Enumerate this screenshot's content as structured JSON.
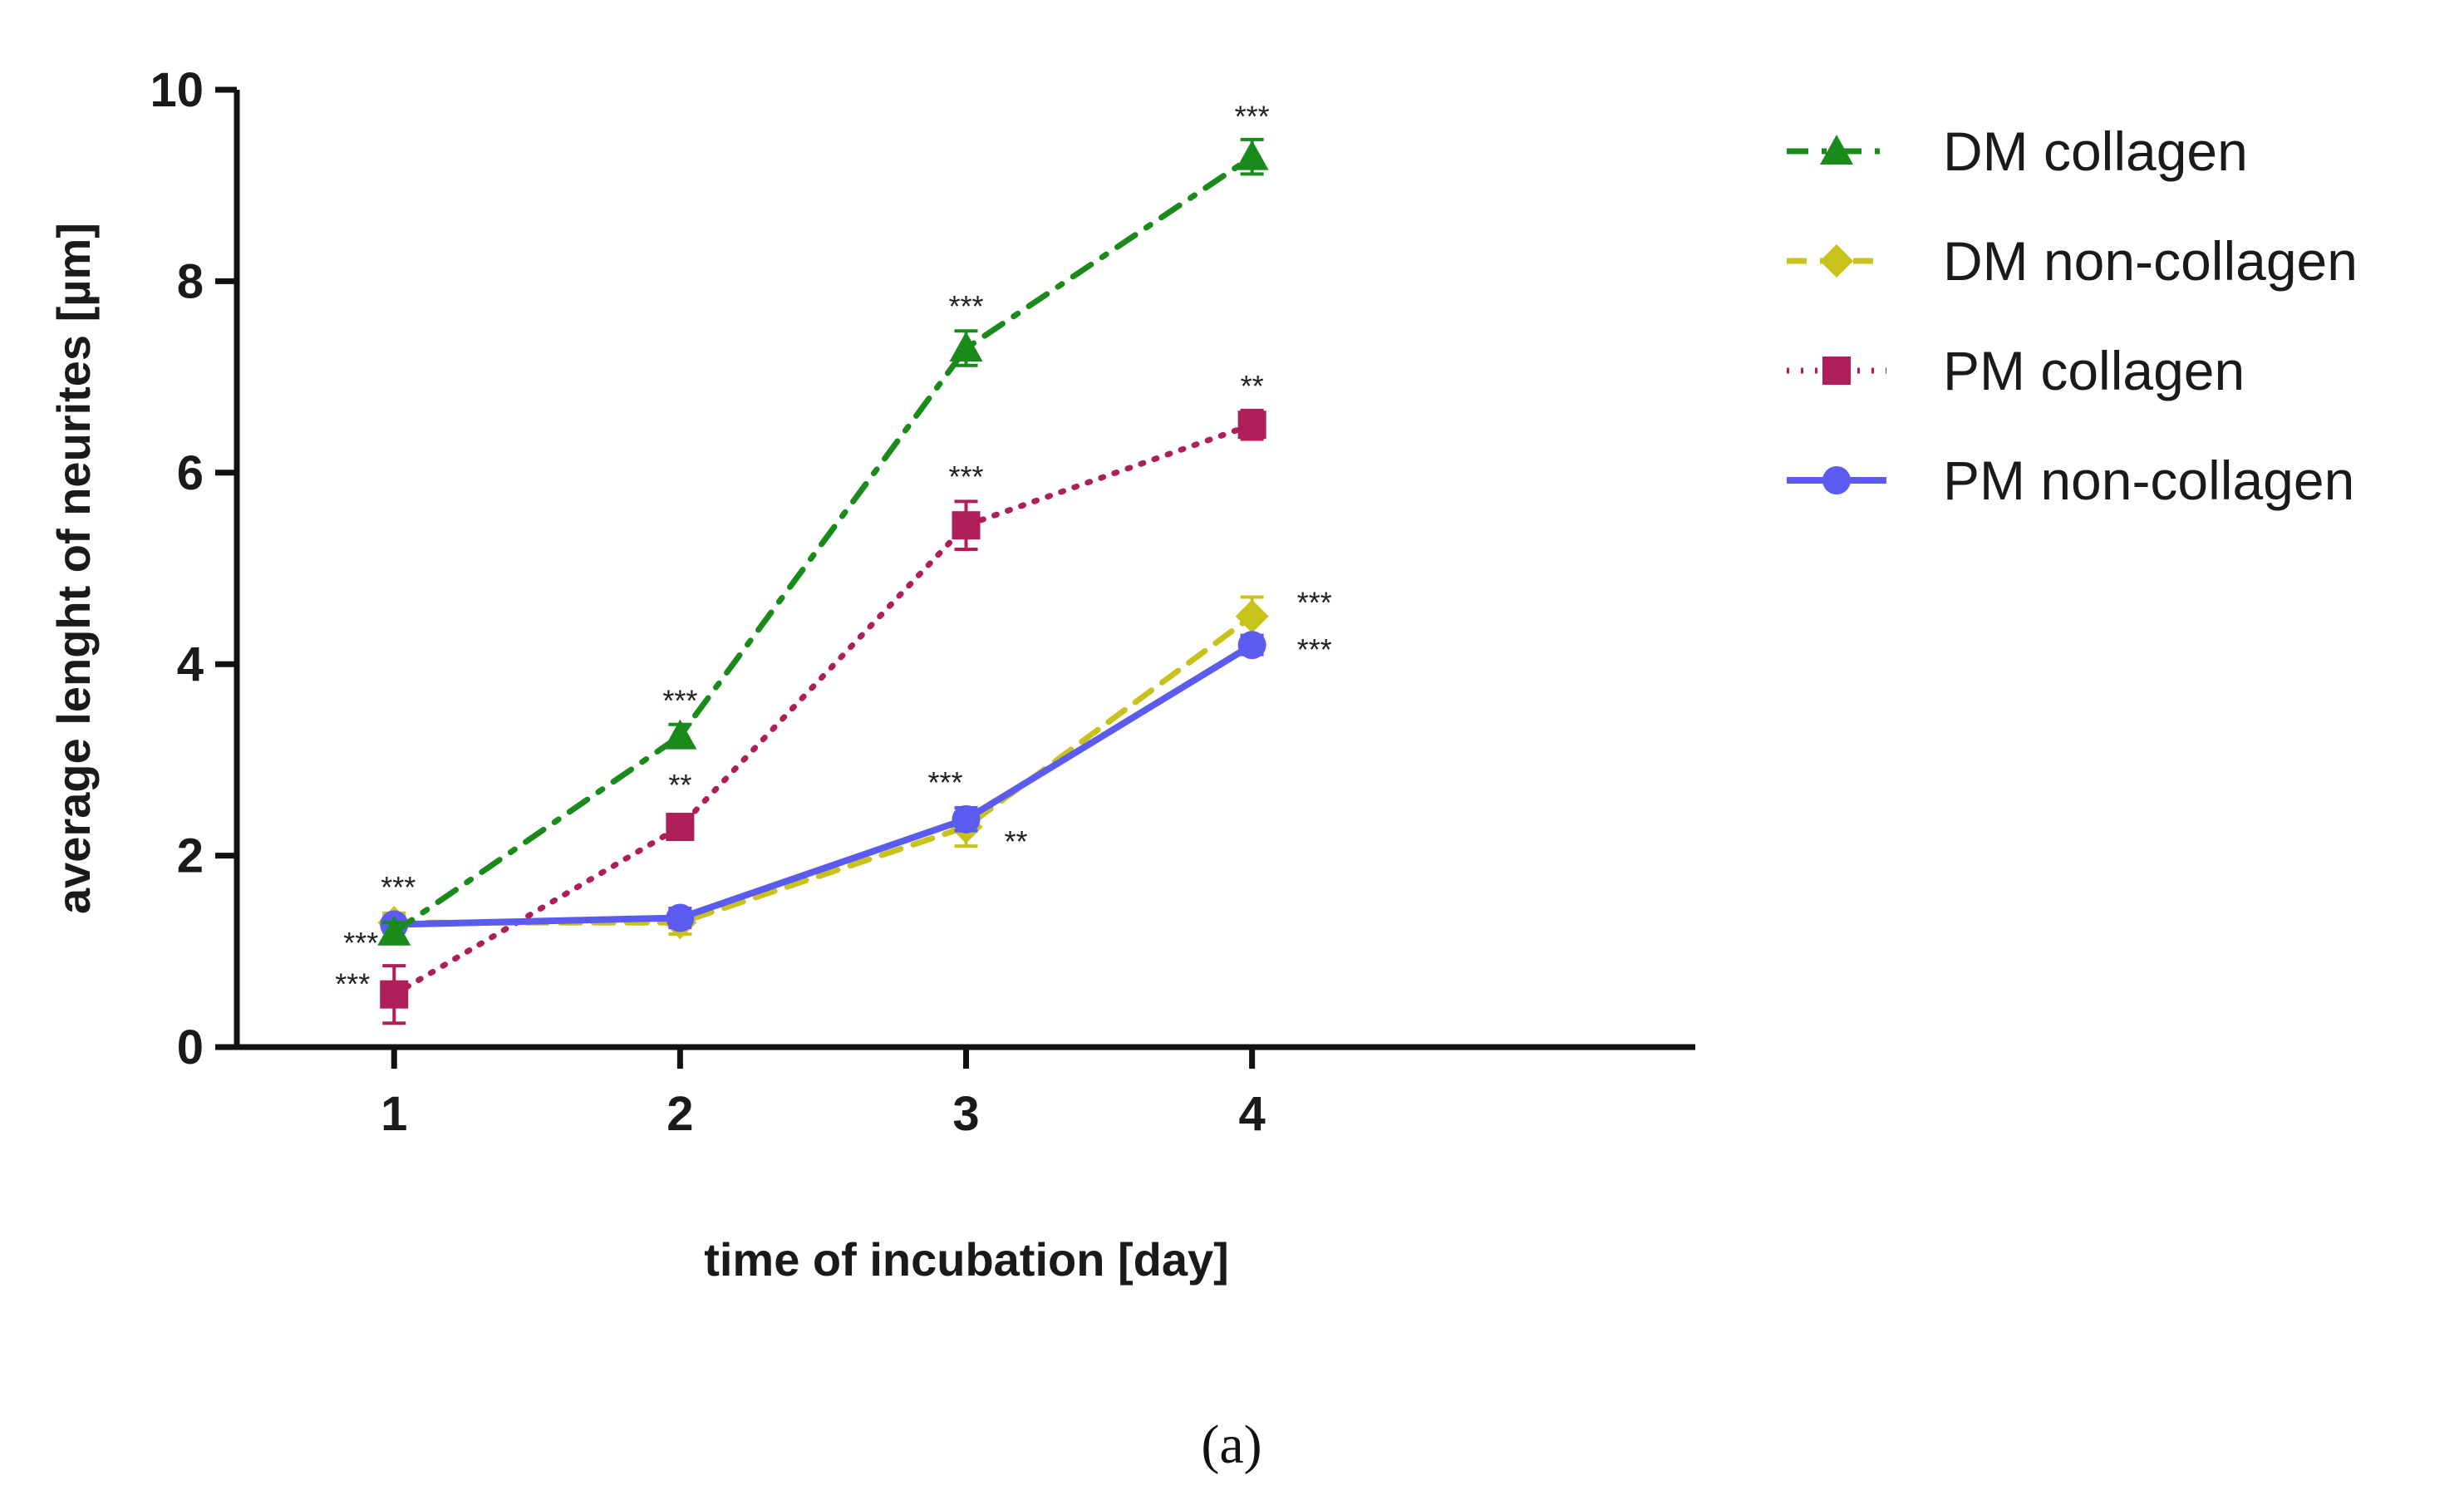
{
  "chart_data": {
    "type": "line",
    "x": [
      1,
      2,
      3,
      4
    ],
    "xlabel": "time of incubation [day]",
    "ylabel": "average lenght of neurites [µm]",
    "xticks": [
      "1",
      "2",
      "3",
      "4"
    ],
    "yticks": [
      "0",
      "2",
      "4",
      "6",
      "8",
      "10"
    ],
    "xlim": [
      0.45,
      5.55
    ],
    "ylim": [
      0,
      10
    ],
    "legend_position": "right",
    "caption": "(a)",
    "series": [
      {
        "name": "DM collagen",
        "color": "#1a8a1a",
        "marker": "triangle",
        "line": "dashdot",
        "values": [
          1.2,
          3.25,
          7.3,
          9.3
        ],
        "errors": [
          0.1,
          0.12,
          0.18,
          0.18
        ],
        "significance": [
          "***",
          "***",
          "***",
          "***"
        ]
      },
      {
        "name": "DM non-collagen",
        "color": "#c8c21a",
        "marker": "diamond",
        "line": "dashed",
        "values": [
          1.3,
          1.3,
          2.3,
          4.5
        ],
        "errors": [
          0.1,
          0.12,
          0.2,
          0.2
        ],
        "significance": [
          "***",
          "",
          "**",
          "***"
        ]
      },
      {
        "name": "PM collagen",
        "color": "#b01e5a",
        "marker": "square",
        "line": "dotted",
        "values": [
          0.55,
          2.3,
          5.45,
          6.5
        ],
        "errors": [
          0.3,
          0.1,
          0.25,
          0.15
        ],
        "significance": [
          "***",
          "**",
          "***",
          "**"
        ]
      },
      {
        "name": "PM non-collagen",
        "color": "#5b5bf0",
        "marker": "circle",
        "line": "solid",
        "values": [
          1.28,
          1.35,
          2.38,
          4.2
        ],
        "errors": [
          0.08,
          0.1,
          0.12,
          0.1
        ],
        "significance": [
          "",
          "",
          "***",
          "***"
        ]
      }
    ]
  }
}
